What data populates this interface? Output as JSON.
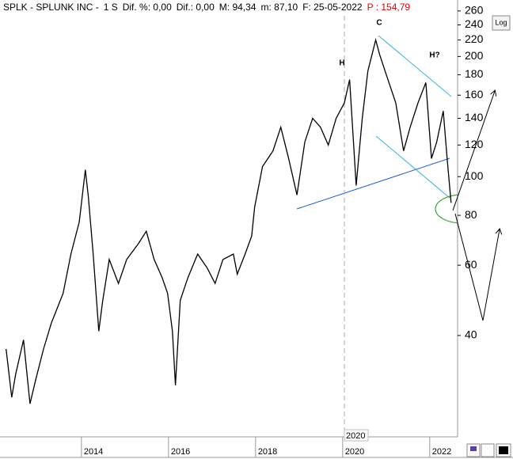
{
  "chart_data": {
    "type": "line",
    "header": [
      "SPLK - SPLUNK INC -",
      "1 S",
      "Dif. %: 0,00",
      "Dif.: 0,00",
      "M: 94,34",
      "m: 87,10",
      "F: 25-05-2022"
    ],
    "price_label": "P : 154,79",
    "log_button": "Log",
    "log_scale": true,
    "xlim": [
      2012.13,
      2022.64
    ],
    "ylim": [
      22.5,
      277
    ],
    "xticks": [
      2014,
      2016,
      2018,
      2020,
      2022
    ],
    "yticks": [
      40,
      60,
      80,
      100,
      120,
      140,
      160,
      180,
      200,
      220,
      240,
      260
    ],
    "cursor": {
      "value": 2020.04,
      "label": "2020"
    },
    "annotations": [
      "H",
      "C",
      "H?"
    ],
    "series": [
      {
        "name": "SPLK",
        "color": "#000000",
        "x": [
          2012.27,
          2012.4,
          2012.49,
          2012.67,
          2012.82,
          2012.95,
          2013.13,
          2013.31,
          2013.58,
          2013.76,
          2013.95,
          2014.09,
          2014.16,
          2014.27,
          2014.4,
          2014.49,
          2014.64,
          2014.85,
          2015.04,
          2015.31,
          2015.49,
          2015.67,
          2015.85,
          2015.98,
          2016.09,
          2016.16,
          2016.27,
          2016.45,
          2016.67,
          2016.89,
          2017.07,
          2017.25,
          2017.49,
          2017.58,
          2017.76,
          2017.91,
          2017.98,
          2018.16,
          2018.4,
          2018.58,
          2018.76,
          2018.95,
          2019.13,
          2019.31,
          2019.49,
          2019.67,
          2019.85,
          2020.04,
          2020.16,
          2020.31,
          2020.45,
          2020.58,
          2020.76,
          2020.85,
          2021.04,
          2021.22,
          2021.4,
          2021.55,
          2021.73,
          2021.91,
          2022.04,
          2022.16,
          2022.31,
          2022.4,
          2022.49
        ],
        "values": [
          37,
          28,
          32,
          39,
          27,
          31,
          37,
          43,
          51,
          64,
          77,
          104,
          89,
          64,
          41,
          49,
          62,
          54,
          62,
          68,
          73,
          62,
          56,
          51,
          41,
          30,
          49,
          56,
          64,
          59,
          54,
          62,
          64,
          57,
          64,
          71,
          84,
          106,
          116,
          133,
          111,
          90,
          122,
          140,
          133,
          120,
          140,
          153,
          175,
          95,
          140,
          184,
          220,
          202,
          175,
          153,
          116,
          133,
          153,
          172,
          111,
          122,
          146,
          111,
          86
        ]
      }
    ]
  }
}
